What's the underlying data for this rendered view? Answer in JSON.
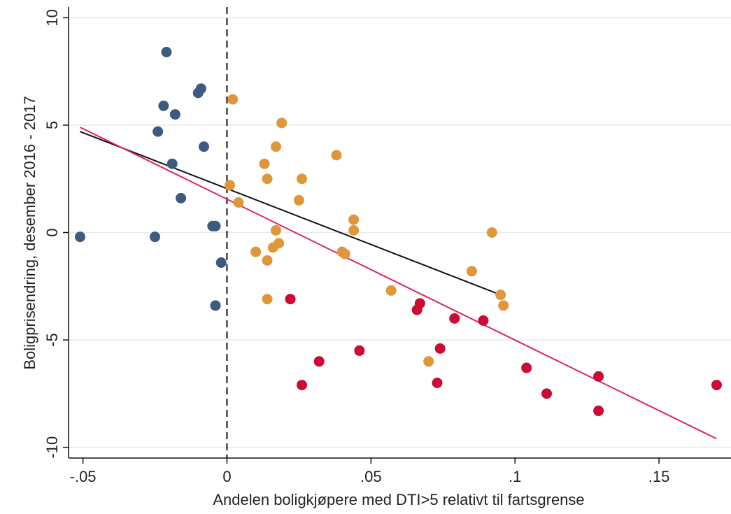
{
  "chart_data": {
    "type": "scatter",
    "xlabel": "Andelen boligkjøpere med DTI>5 relativt til fartsgrense",
    "ylabel": "Boligprisendring, desember 2016 - 2017",
    "xlim": [
      -0.055,
      0.175
    ],
    "ylim": [
      -10.5,
      10.5
    ],
    "xticks": [
      -0.05,
      0,
      0.05,
      0.1,
      0.15
    ],
    "xtick_labels": [
      "-.05",
      "0",
      ".05",
      ".1",
      ".15"
    ],
    "yticks": [
      -10,
      -5,
      0,
      5,
      10
    ],
    "ytick_labels": [
      "-10",
      "-5",
      "0",
      "5",
      "10"
    ],
    "grid": "horizontal",
    "reference_line": {
      "x": 0,
      "style": "dashed",
      "color": "#111111"
    },
    "series": [
      {
        "color": "#3d5a80",
        "points": [
          [
            -0.051,
            -0.2
          ],
          [
            -0.025,
            -0.2
          ],
          [
            -0.021,
            8.4
          ],
          [
            -0.022,
            5.9
          ],
          [
            -0.024,
            4.7
          ],
          [
            -0.018,
            5.5
          ],
          [
            -0.019,
            3.2
          ],
          [
            -0.016,
            1.6
          ],
          [
            -0.01,
            6.5
          ],
          [
            -0.009,
            6.7
          ],
          [
            -0.008,
            4.0
          ],
          [
            -0.005,
            0.3
          ],
          [
            -0.004,
            0.3
          ],
          [
            -0.002,
            -1.4
          ],
          [
            -0.004,
            -3.4
          ]
        ]
      },
      {
        "color": "#e0973a",
        "points": [
          [
            0.002,
            6.2
          ],
          [
            0.001,
            2.2
          ],
          [
            0.004,
            1.4
          ],
          [
            0.01,
            -0.9
          ],
          [
            0.013,
            3.2
          ],
          [
            0.014,
            2.5
          ],
          [
            0.014,
            -1.3
          ],
          [
            0.014,
            -3.1
          ],
          [
            0.016,
            -0.7
          ],
          [
            0.017,
            0.1
          ],
          [
            0.018,
            -0.5
          ],
          [
            0.017,
            4.0
          ],
          [
            0.019,
            5.1
          ],
          [
            0.025,
            1.5
          ],
          [
            0.026,
            2.5
          ],
          [
            0.038,
            3.6
          ],
          [
            0.04,
            -0.9
          ],
          [
            0.041,
            -1.0
          ],
          [
            0.044,
            0.6
          ],
          [
            0.044,
            0.1
          ],
          [
            0.057,
            -2.7
          ],
          [
            0.07,
            -6.0
          ],
          [
            0.085,
            -1.8
          ],
          [
            0.092,
            0.0
          ],
          [
            0.095,
            -2.9
          ],
          [
            0.096,
            -3.4
          ]
        ]
      },
      {
        "color": "#cc0a35",
        "points": [
          [
            0.022,
            -3.1
          ],
          [
            0.026,
            -7.1
          ],
          [
            0.032,
            -6.0
          ],
          [
            0.046,
            -5.5
          ],
          [
            0.066,
            -3.6
          ],
          [
            0.067,
            -3.3
          ],
          [
            0.073,
            -7.0
          ],
          [
            0.074,
            -5.4
          ],
          [
            0.079,
            -4.0
          ],
          [
            0.089,
            -4.1
          ],
          [
            0.104,
            -6.3
          ],
          [
            0.111,
            -7.5
          ],
          [
            0.129,
            -6.7
          ],
          [
            0.129,
            -8.3
          ],
          [
            0.17,
            -7.1
          ]
        ]
      }
    ],
    "fit_lines": [
      {
        "color": "#111111",
        "from": [
          -0.051,
          4.7
        ],
        "to": [
          0.095,
          -2.9
        ]
      },
      {
        "color": "#e0245e",
        "from": [
          -0.051,
          4.9
        ],
        "to": [
          0.17,
          -9.6
        ]
      }
    ]
  }
}
